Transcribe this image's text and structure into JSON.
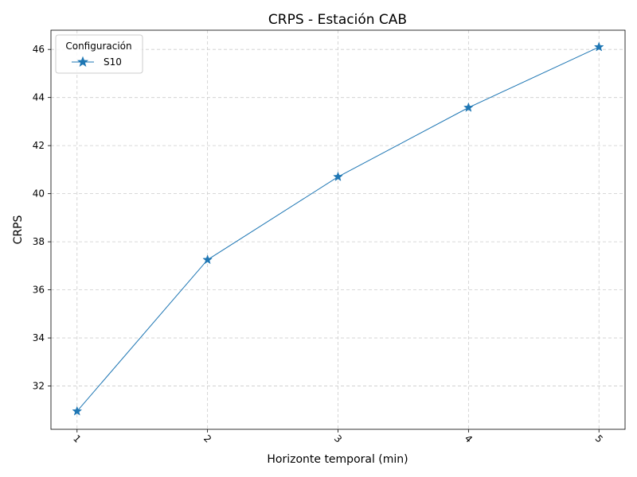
{
  "chart_data": {
    "type": "line",
    "title": "CRPS - Estación CAB",
    "xlabel": "Horizonte temporal (min)",
    "ylabel": "CRPS",
    "x": [
      1,
      2,
      3,
      4,
      5
    ],
    "x_tick_labels": [
      "1",
      "2",
      "3",
      "4",
      "5"
    ],
    "y_ticks": [
      32,
      34,
      36,
      38,
      40,
      42,
      44,
      46
    ],
    "y_tick_labels": [
      "32",
      "34",
      "36",
      "38",
      "40",
      "42",
      "44",
      "46"
    ],
    "ylim": [
      30.2,
      46.8
    ],
    "xlim": [
      0.8,
      5.2
    ],
    "grid": true,
    "legend": {
      "title": "Configuración",
      "placement": "top-left"
    },
    "series": [
      {
        "name": "S10",
        "values": [
          30.95,
          37.25,
          40.7,
          43.58,
          46.1
        ],
        "color": "#1f77b4",
        "marker": "star"
      }
    ]
  }
}
